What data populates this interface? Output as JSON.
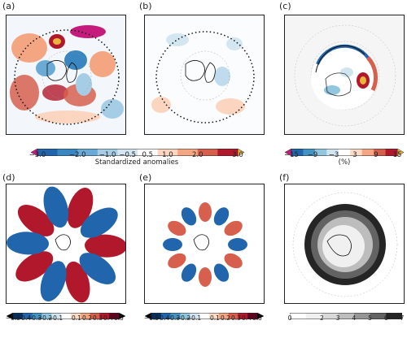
{
  "panels": [
    {
      "id": "a",
      "label": "(a)"
    },
    {
      "id": "b",
      "label": "(b)"
    },
    {
      "id": "c",
      "label": "(c)"
    },
    {
      "id": "d",
      "label": "(d)"
    },
    {
      "id": "e",
      "label": "(e)"
    },
    {
      "id": "f",
      "label": "(f)"
    }
  ],
  "colorbars": {
    "standardized": {
      "label": "Standardized anomalies",
      "ticks": [
        "−3.0",
        "−2.0",
        "−1.0",
        "−0.5",
        "0.5",
        "1.0",
        "2.0",
        "3.0"
      ],
      "colors": [
        "#2166ac",
        "#3a86c0",
        "#6aaad6",
        "#a6cde6",
        "#d3e6f2",
        "#ffffff",
        "#fbd5c0",
        "#f4a683",
        "#d6604d",
        "#b2182b"
      ],
      "extend_low": "#c51b7d",
      "extend_high": "#e8b63a"
    },
    "percent": {
      "label": "(%)",
      "ticks": [
        "−15",
        "−9",
        "−3",
        "3",
        "9",
        "15"
      ],
      "colors": [
        "#2166ac",
        "#4393c3",
        "#92c5de",
        "#d1e5f0",
        "#ffffff",
        "#fddbc7",
        "#f4a582",
        "#d6604d",
        "#b2182b"
      ],
      "extend_low": "#c51b7d",
      "extend_high": "#e8b63a"
    },
    "eof_d": {
      "ticks": [
        "−0.5",
        "−0.4",
        "−0.3",
        "−0.2",
        "−0.1",
        "0.1",
        "0.2",
        "0.3",
        "0.4",
        "0.5"
      ],
      "colors": [
        "#053061",
        "#2166ac",
        "#4393c3",
        "#92c5de",
        "#d1e5f0",
        "#ffffff",
        "#fddbc7",
        "#f4a582",
        "#d6604d",
        "#b2182b",
        "#67001f"
      ]
    },
    "eof_e": {
      "ticks": [
        "−0.5",
        "−0.4",
        "−0.3",
        "−0.2",
        "−0.1",
        "0.1",
        "0.2",
        "0.3",
        "0.4",
        "0.5"
      ],
      "colors": [
        "#053061",
        "#2166ac",
        "#4393c3",
        "#92c5de",
        "#d1e5f0",
        "#ffffff",
        "#fddbc7",
        "#f4a582",
        "#d6604d",
        "#b2182b",
        "#67001f"
      ]
    },
    "grey": {
      "ticks": [
        "0",
        "2",
        "3",
        "4",
        "5",
        "6",
        "7"
      ],
      "colors": [
        "#ffffff",
        "#f0f0f0",
        "#d9d9d9",
        "#bdbdbd",
        "#969696",
        "#636363",
        "#252525"
      ]
    }
  }
}
